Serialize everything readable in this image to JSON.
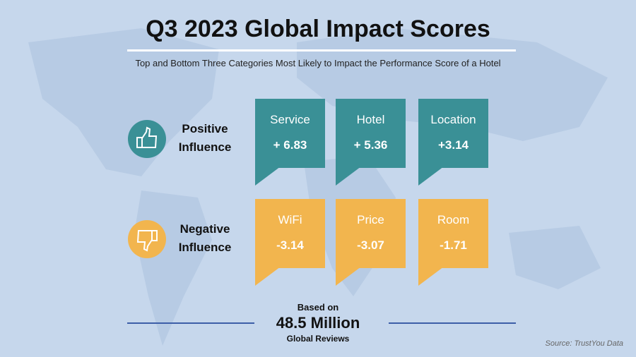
{
  "title": "Q3 2023 Global Impact Scores",
  "subtitle": "Top and  Bottom Three Categories Most Likely to Impact the Performance Score of a Hotel",
  "groups": [
    {
      "label": "Positive Influence",
      "items": [
        {
          "name": "Service",
          "score": "+ 6.83"
        },
        {
          "name": "Hotel",
          "score": "+ 5.36"
        },
        {
          "name": "Location",
          "score": "+3.14"
        }
      ]
    },
    {
      "label": "Negative Influence",
      "items": [
        {
          "name": "WiFi",
          "score": "-3.14"
        },
        {
          "name": "Price",
          "score": "-3.07"
        },
        {
          "name": "Room",
          "score": "-1.71"
        }
      ]
    }
  ],
  "footer": {
    "based_on": "Based on",
    "total": "48.5 Million",
    "unit": "Global Reviews"
  },
  "source": "Source: TrustYou  Data"
}
